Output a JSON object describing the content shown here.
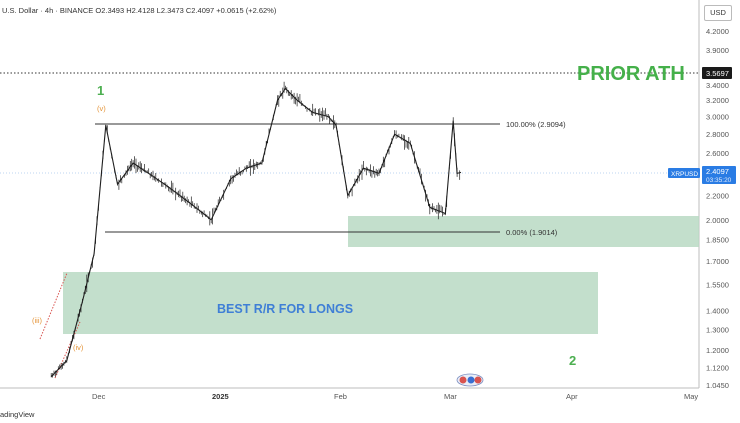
{
  "header": {
    "title": "U.S. Dollar · 4h · BINANCE",
    "ohlc": "O2.3493 H2.4128 L2.3473 C2.4097 +0.0615 (+2.62%)"
  },
  "currency_button": "USD",
  "annotations": {
    "prior_ath": "PRIOR ATH",
    "wave_1": "1",
    "wave_2": "2",
    "wave_v": "(v)",
    "wave_iii": "(iii)",
    "wave_iv": "(iv)",
    "fib_100": "100.00% (2.9094)",
    "fib_0": "0.00% (1.9014)",
    "longs_zone": "BEST R/R FOR LONGS"
  },
  "price_axis": {
    "ticks": [
      "4.2000",
      "3.9000",
      "3.6000",
      "3.4000",
      "3.2000",
      "3.0000",
      "2.8000",
      "2.6000",
      "2.4000",
      "2.2000",
      "2.0000",
      "1.8500",
      "1.7000",
      "1.5500",
      "1.4000",
      "1.3000",
      "1.2000",
      "1.1200",
      "1.0450"
    ],
    "prior_ath_price": "3.5697",
    "symbol_tag": "XRPUSD",
    "current_price": "2.4097",
    "countdown": "03:35:20"
  },
  "time_axis": {
    "labels": [
      "Dec",
      "2025",
      "Feb",
      "Mar",
      "Apr",
      "May"
    ]
  },
  "footer": "adingView",
  "colors": {
    "candles": "#1f1f1f",
    "zones": "#b9d9c3",
    "prior_ath_text": "#45b04a",
    "price_tag": "#2a7ce4",
    "longs_text": "#3f7fd6"
  },
  "chart_data": {
    "type": "line",
    "title": "",
    "xlabel": "",
    "ylabel": "",
    "scale": "log",
    "ylim": [
      1.0,
      4.4
    ],
    "x": [
      "2024-11-19",
      "2024-11-23",
      "2024-11-27",
      "2024-11-30",
      "2024-12-03",
      "2024-12-06",
      "2024-12-10",
      "2024-12-14",
      "2024-12-18",
      "2024-12-22",
      "2024-12-26",
      "2024-12-30",
      "2025-01-04",
      "2025-01-08",
      "2025-01-12",
      "2025-01-16",
      "2025-01-18",
      "2025-01-21",
      "2025-01-25",
      "2025-01-29",
      "2025-01-31",
      "2025-02-03",
      "2025-02-07",
      "2025-02-11",
      "2025-02-15",
      "2025-02-19",
      "2025-02-24",
      "2025-02-28",
      "2025-03-02",
      "2025-03-03",
      "2025-03-04"
    ],
    "series": [
      {
        "values": [
          1.08,
          1.15,
          1.45,
          1.75,
          2.9,
          2.3,
          2.5,
          2.4,
          2.3,
          2.2,
          2.1,
          2.0,
          2.35,
          2.45,
          2.5,
          3.2,
          3.35,
          3.2,
          3.05,
          3.0,
          2.9,
          2.2,
          2.45,
          2.4,
          2.8,
          2.7,
          2.1,
          2.05,
          2.95,
          2.4,
          2.4097
        ]
      }
    ],
    "horizontal_levels": [
      {
        "label": "PRIOR ATH",
        "value": 3.5697
      },
      {
        "label": "100.00%",
        "value": 2.9094
      },
      {
        "label": "0.00%",
        "value": 1.9014
      }
    ],
    "zones": [
      {
        "label": "",
        "from": 1.78,
        "to": 2.03
      },
      {
        "label": "BEST R/R FOR LONGS",
        "from": 1.26,
        "to": 1.62
      }
    ]
  }
}
